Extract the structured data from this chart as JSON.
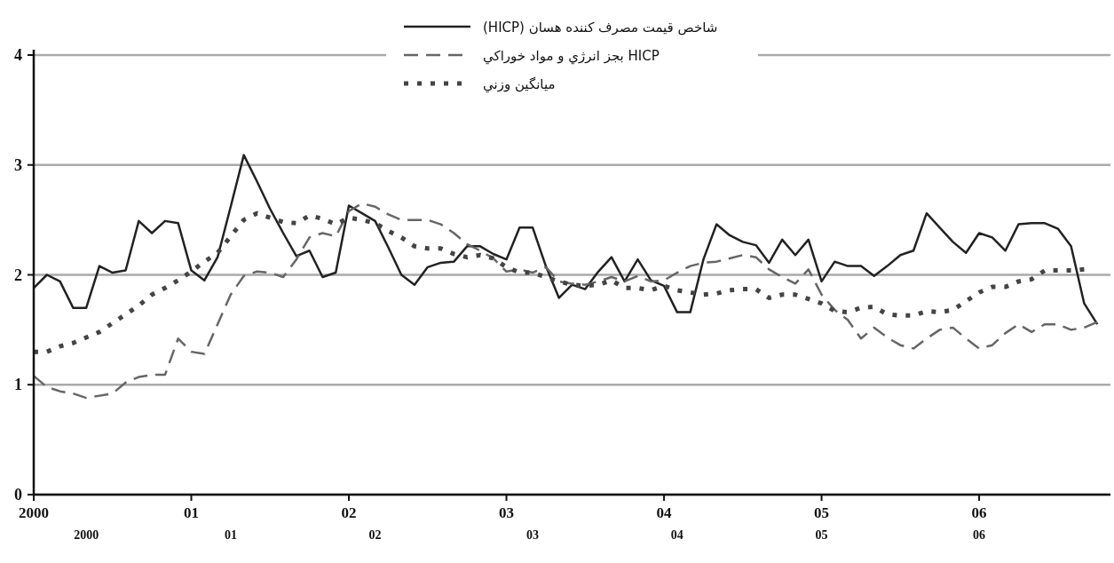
{
  "chart_data": {
    "type": "line",
    "x": [
      "2000-01",
      "2000-02",
      "2000-03",
      "2000-04",
      "2000-05",
      "2000-06",
      "2000-07",
      "2000-08",
      "2000-09",
      "2000-10",
      "2000-11",
      "2000-12",
      "2001-01",
      "2001-02",
      "2001-03",
      "2001-04",
      "2001-05",
      "2001-06",
      "2001-07",
      "2001-08",
      "2001-09",
      "2001-10",
      "2001-11",
      "2001-12",
      "2002-01",
      "2002-02",
      "2002-03",
      "2002-04",
      "2002-05",
      "2002-06",
      "2002-07",
      "2002-08",
      "2002-09",
      "2002-10",
      "2002-11",
      "2002-12",
      "2003-01",
      "2003-02",
      "2003-03",
      "2003-04",
      "2003-05",
      "2003-06",
      "2003-07",
      "2003-08",
      "2003-09",
      "2003-10",
      "2003-11",
      "2003-12",
      "2004-01",
      "2004-02",
      "2004-03",
      "2004-04",
      "2004-05",
      "2004-06",
      "2004-07",
      "2004-08",
      "2004-09",
      "2004-10",
      "2004-11",
      "2004-12",
      "2005-01",
      "2005-02",
      "2005-03",
      "2005-04",
      "2005-05",
      "2005-06",
      "2005-07",
      "2005-08",
      "2005-09",
      "2005-10",
      "2005-11",
      "2005-12",
      "2006-01",
      "2006-02",
      "2006-03",
      "2006-04",
      "2006-05",
      "2006-06",
      "2006-07",
      "2006-08",
      "2006-09",
      "2006-10"
    ],
    "series": [
      {
        "name": "شاخص قيمت مصرف کننده هسان (HICP)",
        "color": "#222222",
        "line_style": "solid",
        "values": [
          1.88,
          2.0,
          1.94,
          1.7,
          1.7,
          2.08,
          2.02,
          2.04,
          2.49,
          2.38,
          2.49,
          2.47,
          2.04,
          1.95,
          2.16,
          2.62,
          3.09,
          2.85,
          2.6,
          2.38,
          2.17,
          2.22,
          1.98,
          2.02,
          2.63,
          2.56,
          2.49,
          2.25,
          2.0,
          1.91,
          2.07,
          2.11,
          2.12,
          2.26,
          2.26,
          2.19,
          2.14,
          2.43,
          2.43,
          2.08,
          1.79,
          1.91,
          1.87,
          2.03,
          2.16,
          1.94,
          2.14,
          1.95,
          1.9,
          1.66,
          1.66,
          2.14,
          2.46,
          2.36,
          2.3,
          2.27,
          2.11,
          2.32,
          2.18,
          2.32,
          1.94,
          2.12,
          2.08,
          2.08,
          1.99,
          2.08,
          2.18,
          2.22,
          2.56,
          2.43,
          2.3,
          2.2,
          2.38,
          2.34,
          2.22,
          2.46,
          2.47,
          2.47,
          2.42,
          2.26,
          1.74,
          1.55
        ]
      },
      {
        "name": "HICP بجز انرژي و مواد خوراکي",
        "color": "#666666",
        "line_style": "dashed",
        "values": [
          1.08,
          0.98,
          0.94,
          0.92,
          0.88,
          0.9,
          0.92,
          1.02,
          1.07,
          1.09,
          1.09,
          1.42,
          1.3,
          1.28,
          1.55,
          1.82,
          1.99,
          2.03,
          2.02,
          1.98,
          2.14,
          2.34,
          2.38,
          2.35,
          2.58,
          2.65,
          2.62,
          2.55,
          2.5,
          2.5,
          2.5,
          2.46,
          2.38,
          2.28,
          2.22,
          2.15,
          2.03,
          2.05,
          2.02,
          2.07,
          1.94,
          1.92,
          1.91,
          1.94,
          1.98,
          1.94,
          1.99,
          1.94,
          1.95,
          2.02,
          2.08,
          2.11,
          2.12,
          2.15,
          2.18,
          2.16,
          2.05,
          1.98,
          1.92,
          2.05,
          1.82,
          1.68,
          1.59,
          1.42,
          1.52,
          1.43,
          1.36,
          1.33,
          1.42,
          1.5,
          1.52,
          1.42,
          1.33,
          1.36,
          1.47,
          1.55,
          1.48,
          1.55,
          1.55,
          1.5,
          1.52,
          1.57
        ]
      },
      {
        "name": "ميانگين وزني",
        "color": "#444444",
        "line_style": "dotted",
        "values": [
          1.3,
          1.3,
          1.35,
          1.38,
          1.43,
          1.48,
          1.56,
          1.64,
          1.72,
          1.82,
          1.88,
          1.95,
          2.03,
          2.12,
          2.2,
          2.35,
          2.5,
          2.56,
          2.52,
          2.48,
          2.47,
          2.54,
          2.51,
          2.46,
          2.52,
          2.5,
          2.47,
          2.4,
          2.34,
          2.26,
          2.24,
          2.24,
          2.19,
          2.16,
          2.18,
          2.15,
          2.07,
          2.02,
          2.02,
          1.98,
          1.94,
          1.91,
          1.9,
          1.91,
          1.95,
          1.88,
          1.88,
          1.86,
          1.9,
          1.86,
          1.84,
          1.82,
          1.83,
          1.86,
          1.87,
          1.87,
          1.79,
          1.82,
          1.82,
          1.78,
          1.74,
          1.67,
          1.66,
          1.7,
          1.71,
          1.64,
          1.63,
          1.63,
          1.67,
          1.66,
          1.68,
          1.76,
          1.84,
          1.89,
          1.89,
          1.94,
          1.96,
          2.04,
          2.04,
          2.04,
          2.05,
          null
        ]
      }
    ],
    "xlim": [
      "2000-01",
      "2006-11"
    ],
    "xticks": [
      {
        "value": "2000-01",
        "label": "2000"
      },
      {
        "value": "2001-01",
        "label": "01"
      },
      {
        "value": "2002-01",
        "label": "02"
      },
      {
        "value": "2003-01",
        "label": "03"
      },
      {
        "value": "2004-01",
        "label": "04"
      },
      {
        "value": "2005-01",
        "label": "05"
      },
      {
        "value": "2006-01",
        "label": "06"
      }
    ],
    "x2lim": [
      "2000-01",
      "2006-11"
    ],
    "x2ticks": [
      {
        "value": "2000-05",
        "label": "2000"
      },
      {
        "value": "2001-04",
        "label": "01"
      },
      {
        "value": "2002-03",
        "label": "02"
      },
      {
        "value": "2003-03",
        "label": "03"
      },
      {
        "value": "2004-02",
        "label": "04"
      },
      {
        "value": "2005-01",
        "label": "05"
      },
      {
        "value": "2006-01",
        "label": "06"
      }
    ],
    "ylim": [
      0,
      4
    ],
    "yticks": [
      0,
      1,
      2,
      3,
      4
    ],
    "grid": "y",
    "legend": "top"
  }
}
